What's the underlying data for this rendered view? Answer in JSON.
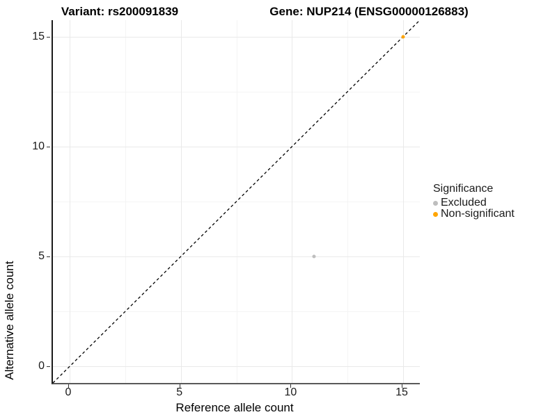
{
  "chart_data": {
    "type": "scatter",
    "titles": {
      "left": "Variant: rs200091839",
      "right": "Gene: NUP214 (ENSG00000126883)"
    },
    "xlabel": "Reference allele count",
    "ylabel": "Alternative allele count",
    "xlim": [
      -0.75,
      15.75
    ],
    "ylim": [
      -0.75,
      15.75
    ],
    "xticks": [
      0,
      5,
      10,
      15
    ],
    "yticks": [
      0,
      5,
      10,
      15
    ],
    "minor_gridlines_x": [
      2.5,
      7.5,
      12.5
    ],
    "minor_gridlines_y": [
      2.5,
      7.5,
      12.5
    ],
    "grid": true,
    "reference_line": {
      "type": "identity",
      "slope": 1,
      "intercept": 0,
      "style": "dashed",
      "color": "#000000"
    },
    "series": [
      {
        "name": "Excluded",
        "color": "#BEBEBE",
        "points": [
          {
            "x": 11,
            "y": 5
          }
        ]
      },
      {
        "name": "Non-significant",
        "color": "#FFA500",
        "points": [
          {
            "x": 15,
            "y": 15
          }
        ]
      }
    ],
    "legend": {
      "title": "Significance",
      "position": "right",
      "entries": [
        {
          "label": "Excluded",
          "color": "#BEBEBE"
        },
        {
          "label": "Non-significant",
          "color": "#FFA500"
        }
      ]
    }
  },
  "colors": {
    "background": "#ffffff",
    "grid_major": "#e9e9e9",
    "grid_minor": "#f4f4f4",
    "axis_line": "#1a1a1a",
    "text": "#000000",
    "excluded": "#BEBEBE",
    "non_significant": "#FFA500"
  }
}
